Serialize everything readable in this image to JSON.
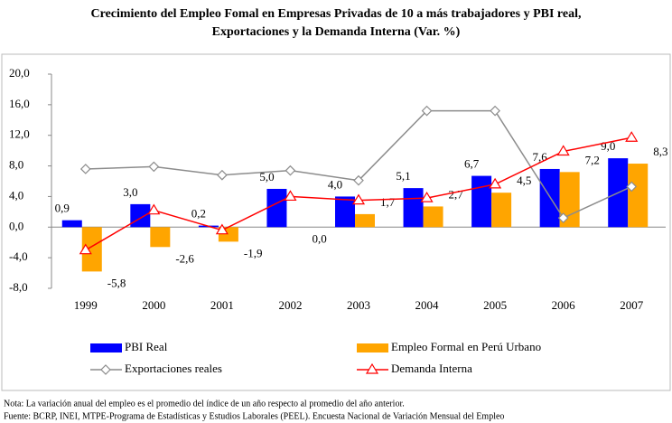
{
  "chart_data": {
    "type": "bar",
    "title": [
      "Crecimiento del Empleo Fomal en Empresas Privadas de 10 a más trabajadores y PBI real,",
      "Exportaciones y la Demanda Interna  (Var. %)"
    ],
    "categories": [
      "1999",
      "2000",
      "2001",
      "2002",
      "2003",
      "2004",
      "2005",
      "2006",
      "2007"
    ],
    "ylim": [
      -8,
      20
    ],
    "yticks": [
      {
        "value": -8,
        "label": "-8,0"
      },
      {
        "value": -4,
        "label": "-4,0"
      },
      {
        "value": 0,
        "label": "0,0"
      },
      {
        "value": 4,
        "label": "4,0"
      },
      {
        "value": 8,
        "label": "8,0"
      },
      {
        "value": 12,
        "label": "12,0"
      },
      {
        "value": 16,
        "label": "16,0"
      },
      {
        "value": 20,
        "label": "20,0"
      }
    ],
    "series": [
      {
        "name": "PBI Real",
        "type": "bar",
        "color": "#0000ff",
        "values": [
          0.9,
          3.0,
          0.2,
          5.0,
          4.0,
          5.1,
          6.7,
          7.6,
          9.0
        ],
        "value_labels": [
          "0,9",
          "3,0",
          "0,2",
          "5,0",
          "4,0",
          "5,1",
          "6,7",
          "7,6",
          "9,0"
        ]
      },
      {
        "name": "Empleo Formal en Perú Urbano",
        "type": "bar",
        "color": "#ffa500",
        "values": [
          -5.8,
          -2.6,
          -1.9,
          0.0,
          1.7,
          2.7,
          4.5,
          7.2,
          8.3
        ],
        "value_labels": [
          "-5,8",
          "-2,6",
          "-1,9",
          "0,0",
          "1,7",
          "2,7",
          "4,5",
          "7,2",
          "8,3"
        ]
      },
      {
        "name": "Exportaciones reales",
        "type": "line",
        "marker": "diamond",
        "color": "#8c8c8c",
        "values": [
          7.6,
          7.9,
          6.8,
          7.4,
          6.1,
          15.2,
          15.2,
          1.2,
          5.3
        ]
      },
      {
        "name": "Demanda Interna",
        "type": "line",
        "marker": "triangle",
        "color": "#ff0000",
        "values": [
          -3.0,
          2.2,
          -0.4,
          4.0,
          3.5,
          3.8,
          5.6,
          9.9,
          11.7
        ]
      }
    ],
    "notes": [
      "Nota: La variación anual del empleo es el promedio del índice de un año respecto al promedio del año anterior.",
      "Fuente: BCRP, INEI, MTPE-Programa de Estadísticas y Estudios Laborales (PEEL). Encuesta Nacional de Variación Mensual del Empleo"
    ]
  }
}
